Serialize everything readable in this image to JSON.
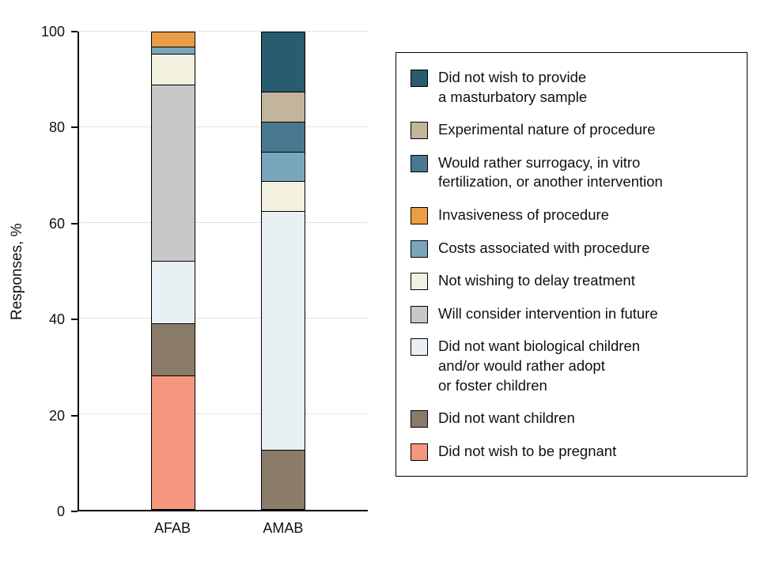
{
  "chart_data": {
    "type": "bar",
    "stacked": true,
    "title": "",
    "xlabel": "",
    "ylabel": "Responses, %",
    "ylim": [
      0,
      100
    ],
    "yticks": [
      0,
      20,
      40,
      60,
      80,
      100
    ],
    "grid": true,
    "legend_position": "right",
    "categories": [
      "AFAB",
      "AMAB"
    ],
    "series": [
      {
        "name": "Did not wish to be pregnant",
        "color": "#f5977e",
        "values": [
          28,
          0
        ]
      },
      {
        "name": "Did not want children",
        "color": "#8b7b69",
        "values": [
          11,
          12.5
        ]
      },
      {
        "name": "Did not want biological children and/or would rather adopt or foster children",
        "color": "#e9f0f4",
        "values": [
          13,
          50
        ]
      },
      {
        "name": "Will consider intervention in future",
        "color": "#c8c8c8",
        "values": [
          37,
          0
        ]
      },
      {
        "name": "Not wishing to delay treatment",
        "color": "#f2f0df",
        "values": [
          6.5,
          6.25
        ]
      },
      {
        "name": "Costs associated with procedure",
        "color": "#7aa6bc",
        "values": [
          1.5,
          6.25
        ]
      },
      {
        "name": "Invasiveness of procedure",
        "color": "#eb9d45",
        "values": [
          3,
          0
        ]
      },
      {
        "name": "Would rather surrogacy, in vitro fertilization, or another intervention",
        "color": "#48798f",
        "values": [
          0,
          6.25
        ]
      },
      {
        "name": "Experimental nature of procedure",
        "color": "#c3b49c",
        "values": [
          0,
          6.25
        ]
      },
      {
        "name": "Did not wish to provide a masturbatory sample",
        "color": "#275d6e",
        "values": [
          0,
          12.5
        ]
      }
    ]
  },
  "legend": {
    "items": [
      {
        "label": "Did not wish to provide\na masturbatory sample",
        "color": "#275d6e"
      },
      {
        "label": "Experimental nature of procedure",
        "color": "#c3b49c"
      },
      {
        "label": "Would rather surrogacy, in vitro\nfertilization, or another intervention",
        "color": "#48798f"
      },
      {
        "label": "Invasiveness of procedure",
        "color": "#eb9d45"
      },
      {
        "label": "Costs associated with procedure",
        "color": "#7aa6bc"
      },
      {
        "label": "Not wishing to delay treatment",
        "color": "#f2f0df"
      },
      {
        "label": "Will consider intervention in future",
        "color": "#c8c8c8"
      },
      {
        "label": "Did not want biological children\nand/or would rather adopt\nor foster children",
        "color": "#e9f0f4"
      },
      {
        "label": "Did not want children",
        "color": "#8b7b69"
      },
      {
        "label": "Did not wish to be pregnant",
        "color": "#f5977e"
      }
    ]
  },
  "colors": {
    "axis": "#000000",
    "gridline": "#e4e4e4",
    "background": "#ffffff"
  }
}
